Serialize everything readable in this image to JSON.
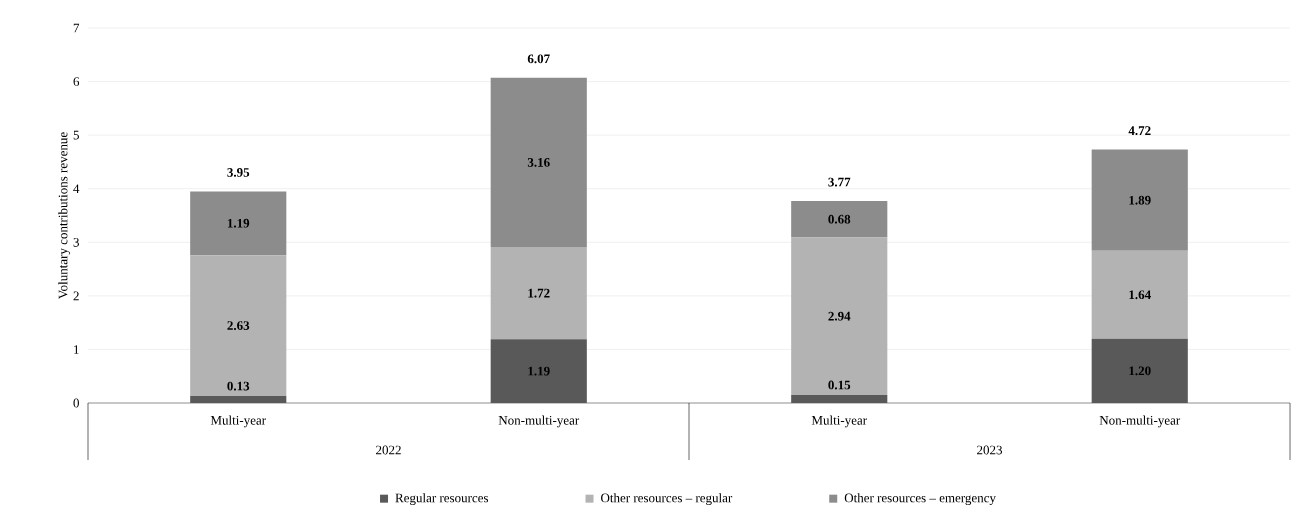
{
  "chart_data": {
    "type": "bar",
    "stacked": true,
    "ylabel": "Voluntary contributions revenue",
    "categories": [
      "Multi-year",
      "Non-multi-year",
      "Multi-year",
      "Non-multi-year"
    ],
    "series": [
      {
        "name": "Regular resources",
        "color": "#595959",
        "values": [
          0.13,
          1.19,
          0.15,
          1.2
        ],
        "value_labels": [
          "0.13",
          "1.19",
          "0.15",
          "1.20"
        ]
      },
      {
        "name": "Other resources – regular",
        "color": "#b3b3b3",
        "values": [
          2.63,
          1.72,
          2.94,
          1.64
        ],
        "value_labels": [
          "2.63",
          "1.72",
          "2.94",
          "1.64"
        ]
      },
      {
        "name": "Other resources – emergency",
        "color": "#8c8c8c",
        "values": [
          1.19,
          3.16,
          0.68,
          1.89
        ],
        "value_labels": [
          "1.19",
          "3.16",
          "0.68",
          "1.89"
        ]
      }
    ],
    "totals": [
      "3.95",
      "6.07",
      "3.77",
      "4.72"
    ],
    "annotations": [
      "2022",
      "2023"
    ],
    "ylim": [
      0,
      7
    ],
    "yticks": [
      0,
      1,
      2,
      3,
      4,
      5,
      6,
      7
    ],
    "grid": "y",
    "legend": "bottom"
  }
}
